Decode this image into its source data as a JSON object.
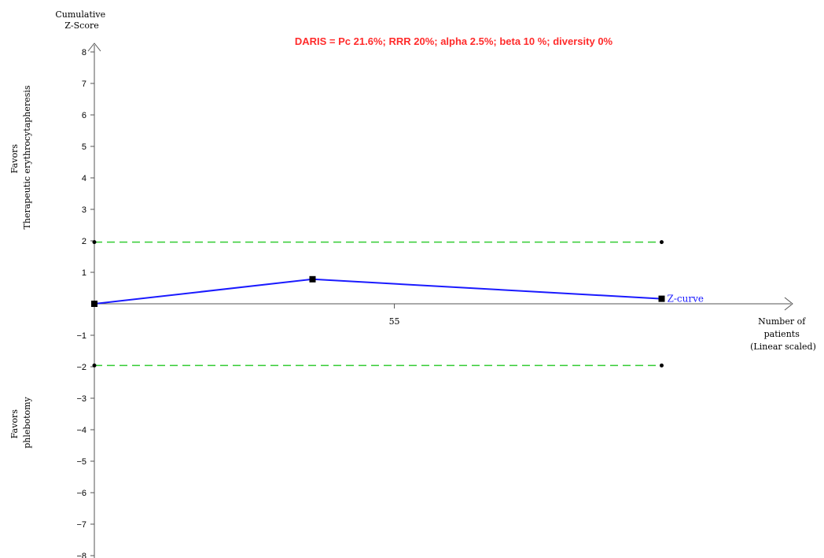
{
  "chart_data": {
    "type": "line",
    "title": "DARIS = Pc 21.6%; RRR 20%; alpha 2.5%; beta 10 %; diversity 0%",
    "ylabel_lines": [
      "Cumulative",
      "Z-Score"
    ],
    "xlabel_lines": [
      "Number of",
      "patients",
      "(Linear scaled)"
    ],
    "favors_top_lines": [
      "Favors",
      "Therapeutic erythrocytapheresis"
    ],
    "favors_bottom_lines": [
      "Favors",
      "phlebotomy"
    ],
    "ylim": [
      -8,
      8
    ],
    "yticks": [
      8,
      7,
      6,
      5,
      4,
      3,
      2,
      1,
      -1,
      -2,
      -3,
      -4,
      -5,
      -6,
      -7,
      -8
    ],
    "xlim": [
      0,
      128
    ],
    "xticks": [
      {
        "value": 55,
        "label": "55"
      }
    ],
    "grid": false,
    "series": [
      {
        "name": "Z-curve",
        "color": "#1a1aff",
        "x": [
          0,
          40,
          104
        ],
        "y": [
          0,
          0.78,
          0.16
        ]
      }
    ],
    "boundaries": [
      {
        "y": 1.96,
        "x": [
          0,
          104
        ],
        "color": "#33cc33"
      },
      {
        "y": -1.96,
        "x": [
          0,
          104
        ],
        "color": "#33cc33"
      }
    ],
    "title_color": "#ff2b2b"
  }
}
